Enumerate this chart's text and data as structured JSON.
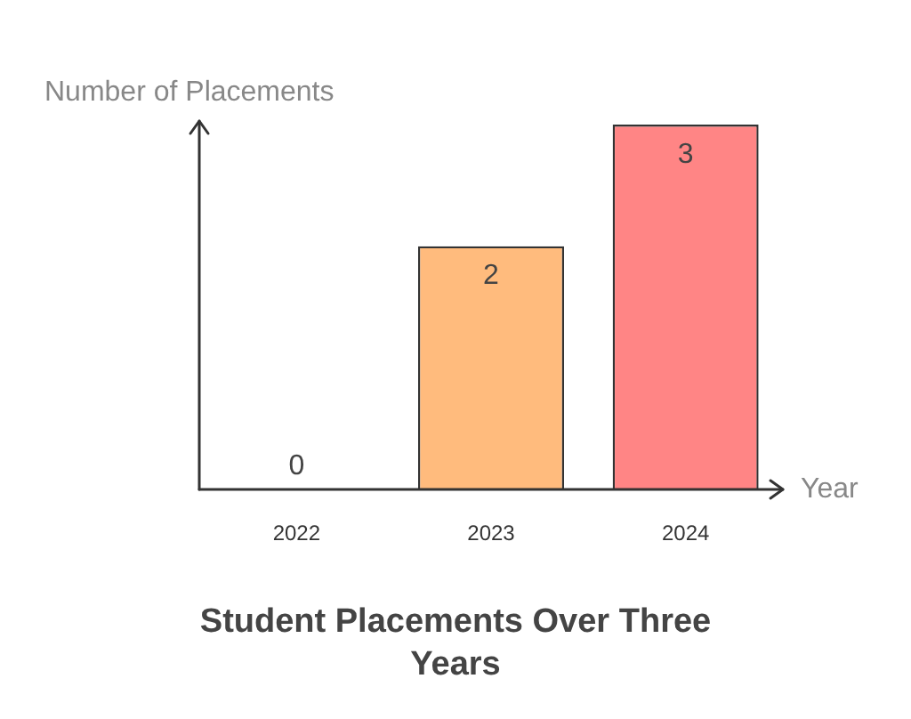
{
  "chart_data": {
    "type": "bar",
    "title": "Student Placements Over Three Years",
    "xlabel": "Year",
    "ylabel": "Number of Placements",
    "categories": [
      "2022",
      "2023",
      "2024"
    ],
    "values": [
      0,
      2,
      3
    ],
    "colors": [
      "#ffd29a",
      "#ffbb7d",
      "#ff8585"
    ],
    "data_labels": true,
    "grid": false,
    "legend": false
  }
}
